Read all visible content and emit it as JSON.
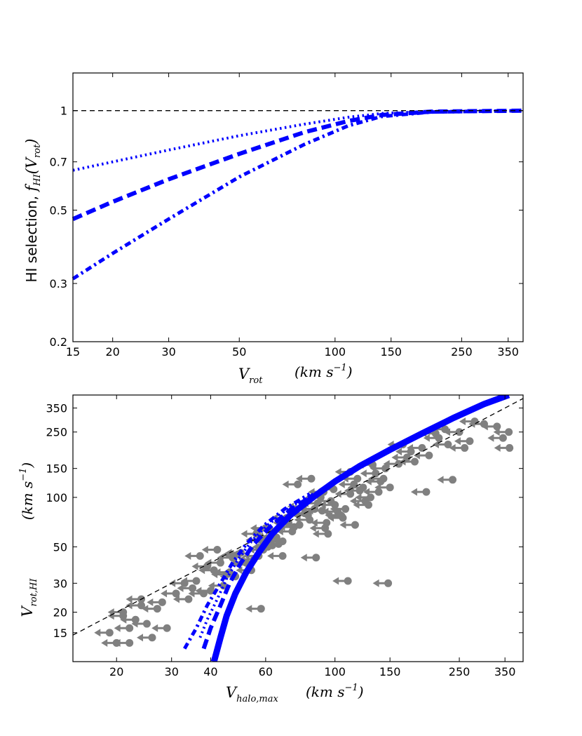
{
  "chart_data": [
    {
      "panel": "top",
      "type": "line",
      "xscale": "log",
      "yscale": "log",
      "xlim": [
        15,
        390
      ],
      "ylim": [
        0.2,
        1.3
      ],
      "x_ticks": [
        15,
        20,
        30,
        50,
        100,
        150,
        250,
        350
      ],
      "x_tick_labels": [
        "15",
        "20",
        "30",
        "50",
        "100",
        "150",
        "250",
        "350"
      ],
      "y_ticks": [
        0.2,
        0.3,
        0.5,
        0.7,
        1
      ],
      "y_tick_labels": [
        "0.2",
        "0.3",
        "0.5",
        "0.7",
        "1"
      ],
      "xlabel": {
        "symbol": "V",
        "sub": "rot",
        "units": "(km s",
        "exp": "−1",
        "close": ")"
      },
      "ylabel": {
        "text": "HI selection, ",
        "symbol": "f",
        "sub": "HI",
        "arg": "(V",
        "argsub": "rot",
        "close": ")"
      },
      "reference_line": {
        "y": 1,
        "style": "dashed",
        "color": "#000000"
      },
      "series": [
        {
          "name": "dotted",
          "style": "dotted",
          "color": "#0000ff",
          "x": [
            15,
            20,
            30,
            50,
            80,
            110,
            140,
            200,
            390
          ],
          "y": [
            0.66,
            0.7,
            0.76,
            0.84,
            0.91,
            0.955,
            0.98,
            0.995,
            1.0
          ]
        },
        {
          "name": "dashed",
          "style": "dashed",
          "color": "#0000ff",
          "x": [
            15,
            20,
            30,
            50,
            80,
            110,
            140,
            200,
            390
          ],
          "y": [
            0.47,
            0.53,
            0.62,
            0.74,
            0.86,
            0.93,
            0.97,
            0.993,
            1.0
          ]
        },
        {
          "name": "dash-dot",
          "style": "dashdot",
          "color": "#0000ff",
          "x": [
            15,
            20,
            30,
            50,
            80,
            110,
            140,
            200,
            390
          ],
          "y": [
            0.31,
            0.37,
            0.47,
            0.63,
            0.79,
            0.9,
            0.96,
            0.99,
            1.0
          ]
        }
      ]
    },
    {
      "panel": "bottom",
      "type": "scatter",
      "xscale": "log",
      "yscale": "log",
      "xlim": [
        14.5,
        400
      ],
      "ylim": [
        10,
        420
      ],
      "x_ticks": [
        20,
        30,
        40,
        60,
        100,
        150,
        250,
        350
      ],
      "x_tick_labels": [
        "20",
        "30",
        "40",
        "60",
        "100",
        "150",
        "250",
        "350"
      ],
      "y_ticks": [
        15,
        20,
        30,
        50,
        100,
        150,
        250,
        350
      ],
      "y_tick_labels": [
        "15",
        "20",
        "30",
        "50",
        "100",
        "150",
        "250",
        "350"
      ],
      "xlabel": {
        "symbol": "V",
        "sub": "halo,max",
        "units": "(km s",
        "exp": "−1",
        "close": ")"
      },
      "ylabel": {
        "symbol": "V",
        "sub": "rot,HI",
        "units": "(km s",
        "exp": "−1",
        "close": ")"
      },
      "reference_line": {
        "x": [
          14.5,
          400
        ],
        "y": [
          14.5,
          400
        ],
        "style": "dashed",
        "color": "#000000"
      },
      "marker_color": "#808080",
      "marker_note": "upper limits (leftward arrows)",
      "points": {
        "x": [
          20,
          22,
          19,
          23,
          21,
          25,
          24,
          27,
          29,
          26,
          28,
          31,
          21,
          24,
          22,
          33,
          35,
          38,
          41,
          43,
          37,
          39,
          45,
          47,
          42,
          36,
          44,
          48,
          34,
          40,
          46,
          49,
          52,
          55,
          58,
          61,
          54,
          57,
          63,
          66,
          59,
          62,
          50,
          53,
          56,
          60,
          65,
          68,
          71,
          74,
          70,
          73,
          77,
          80,
          83,
          86,
          79,
          82,
          88,
          91,
          94,
          97,
          90,
          93,
          100,
          104,
          108,
          112,
          102,
          106,
          115,
          120,
          125,
          130,
          118,
          123,
          135,
          140,
          145,
          150,
          138,
          143,
          160,
          170,
          180,
          190,
          165,
          175,
          200,
          215,
          230,
          250,
          210,
          225,
          270,
          300,
          330,
          360,
          260,
          280,
          345,
          362,
          63,
          87,
          110,
          148,
          95,
          105,
          116,
          128,
          76,
          84,
          92,
          99,
          112,
          132,
          196,
          238,
          58,
          68
        ],
        "y": [
          13,
          16,
          15,
          18,
          20,
          17,
          22,
          21,
          16,
          14,
          23,
          26,
          19,
          24,
          13,
          30,
          28,
          26,
          36,
          40,
          44,
          38,
          34,
          43,
          48,
          31,
          29,
          33,
          24,
          27,
          35,
          45,
          40,
          42,
          55,
          50,
          36,
          44,
          58,
          52,
          48,
          63,
          46,
          39,
          60,
          65,
          57,
          54,
          70,
          66,
          75,
          62,
          68,
          80,
          73,
          85,
          88,
          78,
          92,
          83,
          70,
          95,
          100,
          65,
          90,
          78,
          85,
          105,
          82,
          75,
          120,
          110,
          95,
          100,
          130,
          115,
          140,
          125,
          150,
          115,
          108,
          130,
          160,
          175,
          165,
          200,
          210,
          190,
          180,
          230,
          210,
          250,
          245,
          260,
          220,
          280,
          270,
          250,
          200,
          290,
          230,
          200,
          51,
          43,
          31,
          30,
          60,
          77,
          68,
          90,
          120,
          130,
          108,
          112,
          143,
          158,
          108,
          128,
          21,
          44
        ]
      },
      "series": [
        {
          "name": "solid",
          "style": "solid",
          "color": "#0000ff",
          "x": [
            41,
            43,
            45,
            48,
            52,
            57,
            63,
            72,
            85,
            100,
            120,
            150,
            190,
            240,
            300,
            360
          ],
          "y": [
            10,
            14,
            19,
            26,
            35,
            46,
            60,
            78,
            100,
            125,
            155,
            195,
            245,
            305,
            370,
            420
          ]
        },
        {
          "name": "dashed",
          "style": "dashed",
          "color": "#0000ff",
          "x": [
            38,
            40,
            43,
            46,
            50,
            55,
            62,
            72,
            85
          ],
          "y": [
            12,
            16,
            22,
            30,
            40,
            52,
            66,
            84,
            103
          ]
        },
        {
          "name": "dotted",
          "style": "dotted",
          "color": "#0000ff",
          "x": [
            37,
            39,
            42,
            45,
            49,
            54,
            61,
            71,
            85
          ],
          "y": [
            14,
            18,
            24,
            32,
            42,
            54,
            68,
            86,
            105
          ]
        },
        {
          "name": "dash-dot",
          "style": "dashdot",
          "color": "#0000ff",
          "x": [
            33,
            36,
            39,
            43,
            47,
            52,
            59,
            69,
            83
          ],
          "y": [
            12,
            16,
            22,
            30,
            40,
            52,
            67,
            85,
            105
          ]
        }
      ]
    }
  ]
}
